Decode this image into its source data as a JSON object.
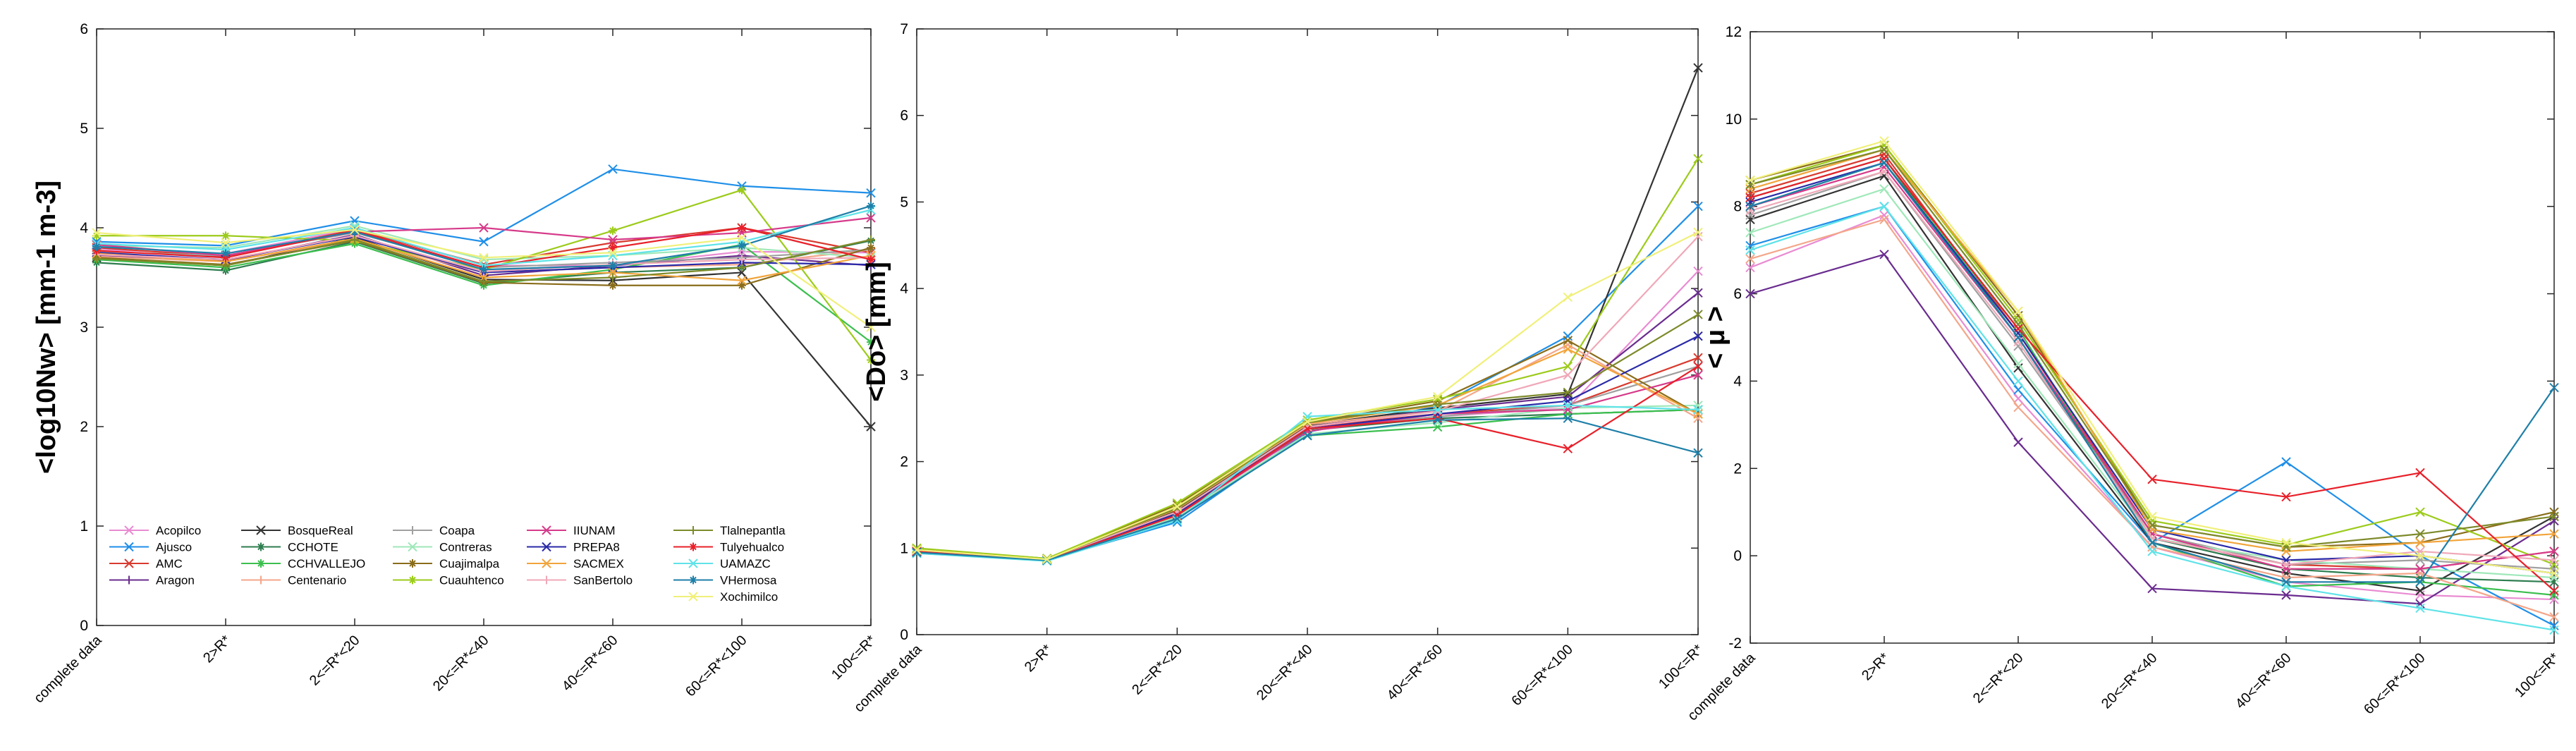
{
  "chart_data": [
    {
      "type": "line",
      "ylabel": "<log10Nw> [mm-1 m-3]",
      "ylim": [
        0,
        6
      ],
      "yticks": [
        "0",
        "1",
        "2",
        "3",
        "4",
        "5",
        "6"
      ],
      "categories": [
        "complete data",
        "2>R*",
        "2<=R*<20",
        "20<=R*<40",
        "40<=R*<60",
        "60<=R*<100",
        "100<=R*"
      ],
      "legend": "bottom-left",
      "series": [
        {
          "name": "Acopilco",
          "color": "#e98bd2",
          "marker": "x",
          "values": [
            3.78,
            3.74,
            3.99,
            3.62,
            3.62,
            3.76,
            3.75
          ]
        },
        {
          "name": "Ajusco",
          "color": "#1f8fe8",
          "marker": "x",
          "values": [
            3.86,
            3.82,
            4.07,
            3.86,
            4.59,
            4.42,
            4.35
          ]
        },
        {
          "name": "AMC",
          "color": "#d83a2f",
          "marker": "x",
          "values": [
            3.8,
            3.71,
            3.98,
            3.63,
            3.85,
            4.0,
            3.75
          ]
        },
        {
          "name": "Aragon",
          "color": "#6a2c8f",
          "marker": "+",
          "values": [
            3.72,
            3.67,
            3.93,
            3.52,
            3.62,
            3.72,
            3.62
          ]
        },
        {
          "name": "BosqueReal",
          "color": "#333333",
          "marker": "x",
          "values": [
            3.7,
            3.62,
            3.9,
            3.48,
            3.47,
            3.55,
            2.0
          ]
        },
        {
          "name": "CCHOTE",
          "color": "#2e7d4f",
          "marker": "*",
          "values": [
            3.65,
            3.57,
            3.86,
            3.44,
            3.55,
            3.6,
            3.87
          ]
        },
        {
          "name": "CCHVALLEJO",
          "color": "#3cbf4f",
          "marker": "*",
          "values": [
            3.68,
            3.6,
            3.84,
            3.42,
            3.58,
            3.83,
            2.85
          ]
        },
        {
          "name": "Centenario",
          "color": "#f4a68a",
          "marker": "+",
          "values": [
            3.71,
            3.66,
            3.88,
            3.55,
            3.6,
            3.63,
            3.78
          ]
        },
        {
          "name": "Coapa",
          "color": "#a0a0a0",
          "marker": "+",
          "values": [
            3.76,
            3.72,
            3.95,
            3.6,
            3.65,
            3.7,
            3.78
          ]
        },
        {
          "name": "Contreras",
          "color": "#9fe8b9",
          "marker": "x",
          "values": [
            3.82,
            3.8,
            4.02,
            3.68,
            3.72,
            3.8,
            3.7
          ]
        },
        {
          "name": "Cuajimalpa",
          "color": "#8a6d1b",
          "marker": "*",
          "values": [
            3.7,
            3.63,
            3.87,
            3.45,
            3.42,
            3.42,
            3.8
          ]
        },
        {
          "name": "Cuauhtenco",
          "color": "#9ccb1a",
          "marker": "*",
          "values": [
            3.92,
            3.92,
            3.87,
            3.58,
            3.97,
            4.38,
            2.67
          ]
        },
        {
          "name": "IIUNAM",
          "color": "#d63a8a",
          "marker": "x",
          "values": [
            3.83,
            3.72,
            3.96,
            4.0,
            3.88,
            3.95,
            4.1
          ]
        },
        {
          "name": "PREPA8",
          "color": "#2a2aa8",
          "marker": "x",
          "values": [
            3.75,
            3.68,
            3.91,
            3.55,
            3.6,
            3.65,
            3.63
          ]
        },
        {
          "name": "SACMEX",
          "color": "#f2a43a",
          "marker": "x",
          "values": [
            3.74,
            3.66,
            3.89,
            3.5,
            3.55,
            3.47,
            3.72
          ]
        },
        {
          "name": "SanBertolo",
          "color": "#f0a8b8",
          "marker": "+",
          "values": [
            3.73,
            3.68,
            3.92,
            3.56,
            3.63,
            3.68,
            3.7
          ]
        },
        {
          "name": "Tlalnepantla",
          "color": "#7d8a2a",
          "marker": "+",
          "values": [
            3.69,
            3.62,
            3.88,
            3.46,
            3.5,
            3.6,
            3.88
          ]
        },
        {
          "name": "Tulyehualco",
          "color": "#e8202a",
          "marker": "*",
          "values": [
            3.77,
            3.7,
            3.97,
            3.6,
            3.8,
            4.0,
            3.68
          ]
        },
        {
          "name": "UAMAZC",
          "color": "#5fe3e8",
          "marker": "x",
          "values": [
            3.84,
            3.78,
            4.0,
            3.62,
            3.72,
            3.86,
            4.18
          ]
        },
        {
          "name": "VHermosa",
          "color": "#1e7fa8",
          "marker": "*",
          "values": [
            3.81,
            3.74,
            3.96,
            3.58,
            3.62,
            3.82,
            4.22
          ]
        },
        {
          "name": "Xochimilco",
          "color": "#f0f07a",
          "marker": "x",
          "values": [
            3.95,
            3.85,
            3.98,
            3.7,
            3.75,
            3.9,
            3.0
          ]
        }
      ]
    },
    {
      "type": "line",
      "ylabel": "<Do> [mm]",
      "ylim": [
        0,
        7
      ],
      "yticks": [
        "0",
        "1",
        "2",
        "3",
        "4",
        "5",
        "6",
        "7"
      ],
      "categories": [
        "complete data",
        "2>R*",
        "2<=R*<20",
        "20<=R*<40",
        "40<=R*<60",
        "60<=R*<100",
        "100<=R*"
      ],
      "series": [
        {
          "name": "Acopilco",
          "color": "#e98bd2",
          "values": [
            0.96,
            0.86,
            1.4,
            2.38,
            2.52,
            2.62,
            4.2
          ]
        },
        {
          "name": "Ajusco",
          "color": "#1f8fe8",
          "values": [
            0.94,
            0.86,
            1.3,
            2.34,
            2.64,
            3.45,
            4.95
          ]
        },
        {
          "name": "AMC",
          "color": "#d83a2f",
          "values": [
            0.96,
            0.86,
            1.38,
            2.4,
            2.55,
            2.65,
            3.2
          ]
        },
        {
          "name": "Aragon",
          "color": "#6a2c8f",
          "values": [
            0.97,
            0.87,
            1.42,
            2.4,
            2.6,
            2.75,
            3.95
          ]
        },
        {
          "name": "BosqueReal",
          "color": "#333333",
          "values": [
            0.98,
            0.87,
            1.44,
            2.42,
            2.62,
            2.78,
            6.55
          ]
        },
        {
          "name": "CCHOTE",
          "color": "#2e7d4f",
          "values": [
            0.96,
            0.86,
            1.4,
            2.36,
            2.5,
            2.55,
            2.6
          ]
        },
        {
          "name": "CCHVALLEJO",
          "color": "#3cbf4f",
          "values": [
            0.95,
            0.86,
            1.35,
            2.3,
            2.4,
            2.55,
            2.6
          ]
        },
        {
          "name": "Centenario",
          "color": "#f4a68a",
          "values": [
            0.97,
            0.87,
            1.45,
            2.43,
            2.58,
            3.35,
            2.5
          ]
        },
        {
          "name": "Coapa",
          "color": "#a0a0a0",
          "values": [
            0.96,
            0.86,
            1.4,
            2.38,
            2.52,
            2.65,
            3.1
          ]
        },
        {
          "name": "Contreras",
          "color": "#9fe8b9",
          "values": [
            0.95,
            0.86,
            1.36,
            2.32,
            2.45,
            2.62,
            2.65
          ]
        },
        {
          "name": "Cuajimalpa",
          "color": "#8a6d1b",
          "values": [
            0.99,
            0.88,
            1.5,
            2.45,
            2.7,
            3.4,
            2.55
          ]
        },
        {
          "name": "Cuauhtenco",
          "color": "#9ccb1a",
          "values": [
            1.0,
            0.88,
            1.52,
            2.48,
            2.72,
            3.1,
            5.5
          ]
        },
        {
          "name": "IIUNAM",
          "color": "#d63a8a",
          "values": [
            0.96,
            0.86,
            1.38,
            2.35,
            2.55,
            2.6,
            3.0
          ]
        },
        {
          "name": "PREPA8",
          "color": "#2a2aa8",
          "values": [
            0.96,
            0.86,
            1.4,
            2.38,
            2.55,
            2.7,
            3.45
          ]
        },
        {
          "name": "SACMEX",
          "color": "#f2a43a",
          "values": [
            0.98,
            0.87,
            1.45,
            2.44,
            2.65,
            3.3,
            2.55
          ]
        },
        {
          "name": "SanBertolo",
          "color": "#f0a8b8",
          "values": [
            0.97,
            0.87,
            1.42,
            2.4,
            2.58,
            3.0,
            4.6
          ]
        },
        {
          "name": "Tlalnepantla",
          "color": "#7d8a2a",
          "values": [
            0.98,
            0.87,
            1.46,
            2.45,
            2.66,
            2.8,
            3.7
          ]
        },
        {
          "name": "Tulyehualco",
          "color": "#e8202a",
          "values": [
            0.96,
            0.86,
            1.38,
            2.38,
            2.5,
            2.15,
            3.1
          ]
        },
        {
          "name": "UAMAZC",
          "color": "#5fe3e8",
          "values": [
            0.94,
            0.85,
            1.32,
            2.52,
            2.6,
            2.65,
            2.6
          ]
        },
        {
          "name": "VHermosa",
          "color": "#1e7fa8",
          "values": [
            0.95,
            0.86,
            1.34,
            2.3,
            2.48,
            2.5,
            2.1
          ]
        },
        {
          "name": "Xochimilco",
          "color": "#f0f07a",
          "values": [
            0.98,
            0.87,
            1.48,
            2.46,
            2.75,
            3.9,
            4.65
          ]
        }
      ]
    },
    {
      "type": "line",
      "ylabel": "< μ >",
      "ylim": [
        -2,
        12
      ],
      "yticks": [
        "-2",
        "0",
        "2",
        "4",
        "6",
        "8",
        "10",
        "12"
      ],
      "categories": [
        "complete data",
        "2>R*",
        "2<=R*<20",
        "20<=R*<40",
        "40<=R*<60",
        "60<=R*<100",
        "100<=R*"
      ],
      "series": [
        {
          "name": "Acopilco",
          "color": "#e98bd2",
          "values": [
            6.6,
            7.8,
            3.6,
            0.2,
            -0.6,
            -0.9,
            -1.0
          ]
        },
        {
          "name": "Ajusco",
          "color": "#1f8fe8",
          "values": [
            7.1,
            8.0,
            3.8,
            0.3,
            2.15,
            0.0,
            -1.6
          ]
        },
        {
          "name": "AMC",
          "color": "#d83a2f",
          "values": [
            8.3,
            9.2,
            5.1,
            0.5,
            -0.2,
            -0.3,
            0.1
          ]
        },
        {
          "name": "Aragon",
          "color": "#6a2c8f",
          "values": [
            6.0,
            6.9,
            2.6,
            -0.75,
            -0.9,
            -1.1,
            0.8
          ]
        },
        {
          "name": "BosqueReal",
          "color": "#333333",
          "values": [
            7.7,
            8.7,
            4.3,
            0.3,
            -0.4,
            -0.8,
            0.9
          ]
        },
        {
          "name": "CCHOTE",
          "color": "#2e7d4f",
          "values": [
            8.2,
            9.1,
            5.0,
            0.4,
            -0.3,
            -0.5,
            -0.6
          ]
        },
        {
          "name": "CCHVALLEJO",
          "color": "#3cbf4f",
          "values": [
            8.0,
            9.0,
            5.2,
            0.3,
            -0.7,
            -0.6,
            -0.9
          ]
        },
        {
          "name": "Centenario",
          "color": "#f4a68a",
          "values": [
            6.8,
            7.7,
            3.4,
            0.2,
            -0.5,
            -0.4,
            -1.4
          ]
        },
        {
          "name": "Coapa",
          "color": "#a0a0a0",
          "values": [
            7.8,
            8.8,
            4.8,
            0.5,
            -0.2,
            -0.1,
            -0.3
          ]
        },
        {
          "name": "Contreras",
          "color": "#9fe8b9",
          "values": [
            7.4,
            8.4,
            4.4,
            0.4,
            -0.1,
            -0.3,
            -0.5
          ]
        },
        {
          "name": "Cuajimalpa",
          "color": "#8a6d1b",
          "values": [
            8.6,
            9.4,
            5.5,
            0.7,
            0.2,
            0.3,
            1.0
          ]
        },
        {
          "name": "Cuauhtenco",
          "color": "#9ccb1a",
          "values": [
            8.5,
            9.4,
            5.4,
            0.8,
            0.25,
            1.0,
            -0.2
          ]
        },
        {
          "name": "IIUNAM",
          "color": "#d63a8a",
          "values": [
            8.0,
            8.9,
            5.0,
            0.5,
            -0.3,
            -0.3,
            0.1
          ]
        },
        {
          "name": "PREPA8",
          "color": "#2a2aa8",
          "values": [
            8.1,
            9.0,
            5.1,
            0.6,
            -0.1,
            0.0,
            -0.4
          ]
        },
        {
          "name": "SACMEX",
          "color": "#f2a43a",
          "values": [
            8.4,
            9.3,
            5.6,
            0.6,
            0.1,
            0.3,
            0.5
          ]
        },
        {
          "name": "SanBertolo",
          "color": "#f0a8b8",
          "values": [
            7.9,
            8.8,
            4.9,
            0.4,
            -0.2,
            0.1,
            -0.1
          ]
        },
        {
          "name": "Tlalnepantla",
          "color": "#7d8a2a",
          "values": [
            8.5,
            9.3,
            5.3,
            0.7,
            0.2,
            0.5,
            0.9
          ]
        },
        {
          "name": "Tulyehualco",
          "color": "#e8202a",
          "values": [
            8.2,
            9.1,
            5.2,
            1.75,
            1.35,
            1.9,
            -0.8
          ]
        },
        {
          "name": "UAMAZC",
          "color": "#5fe3e8",
          "values": [
            7.0,
            8.0,
            4.0,
            0.1,
            -0.7,
            -1.2,
            -1.7
          ]
        },
        {
          "name": "VHermosa",
          "color": "#1e7fa8",
          "values": [
            8.0,
            9.0,
            5.0,
            0.3,
            -0.6,
            -0.6,
            3.85
          ]
        },
        {
          "name": "Xochimilco",
          "color": "#f0f07a",
          "values": [
            8.6,
            9.5,
            5.6,
            0.9,
            0.3,
            0.0,
            -0.4
          ]
        }
      ]
    }
  ]
}
